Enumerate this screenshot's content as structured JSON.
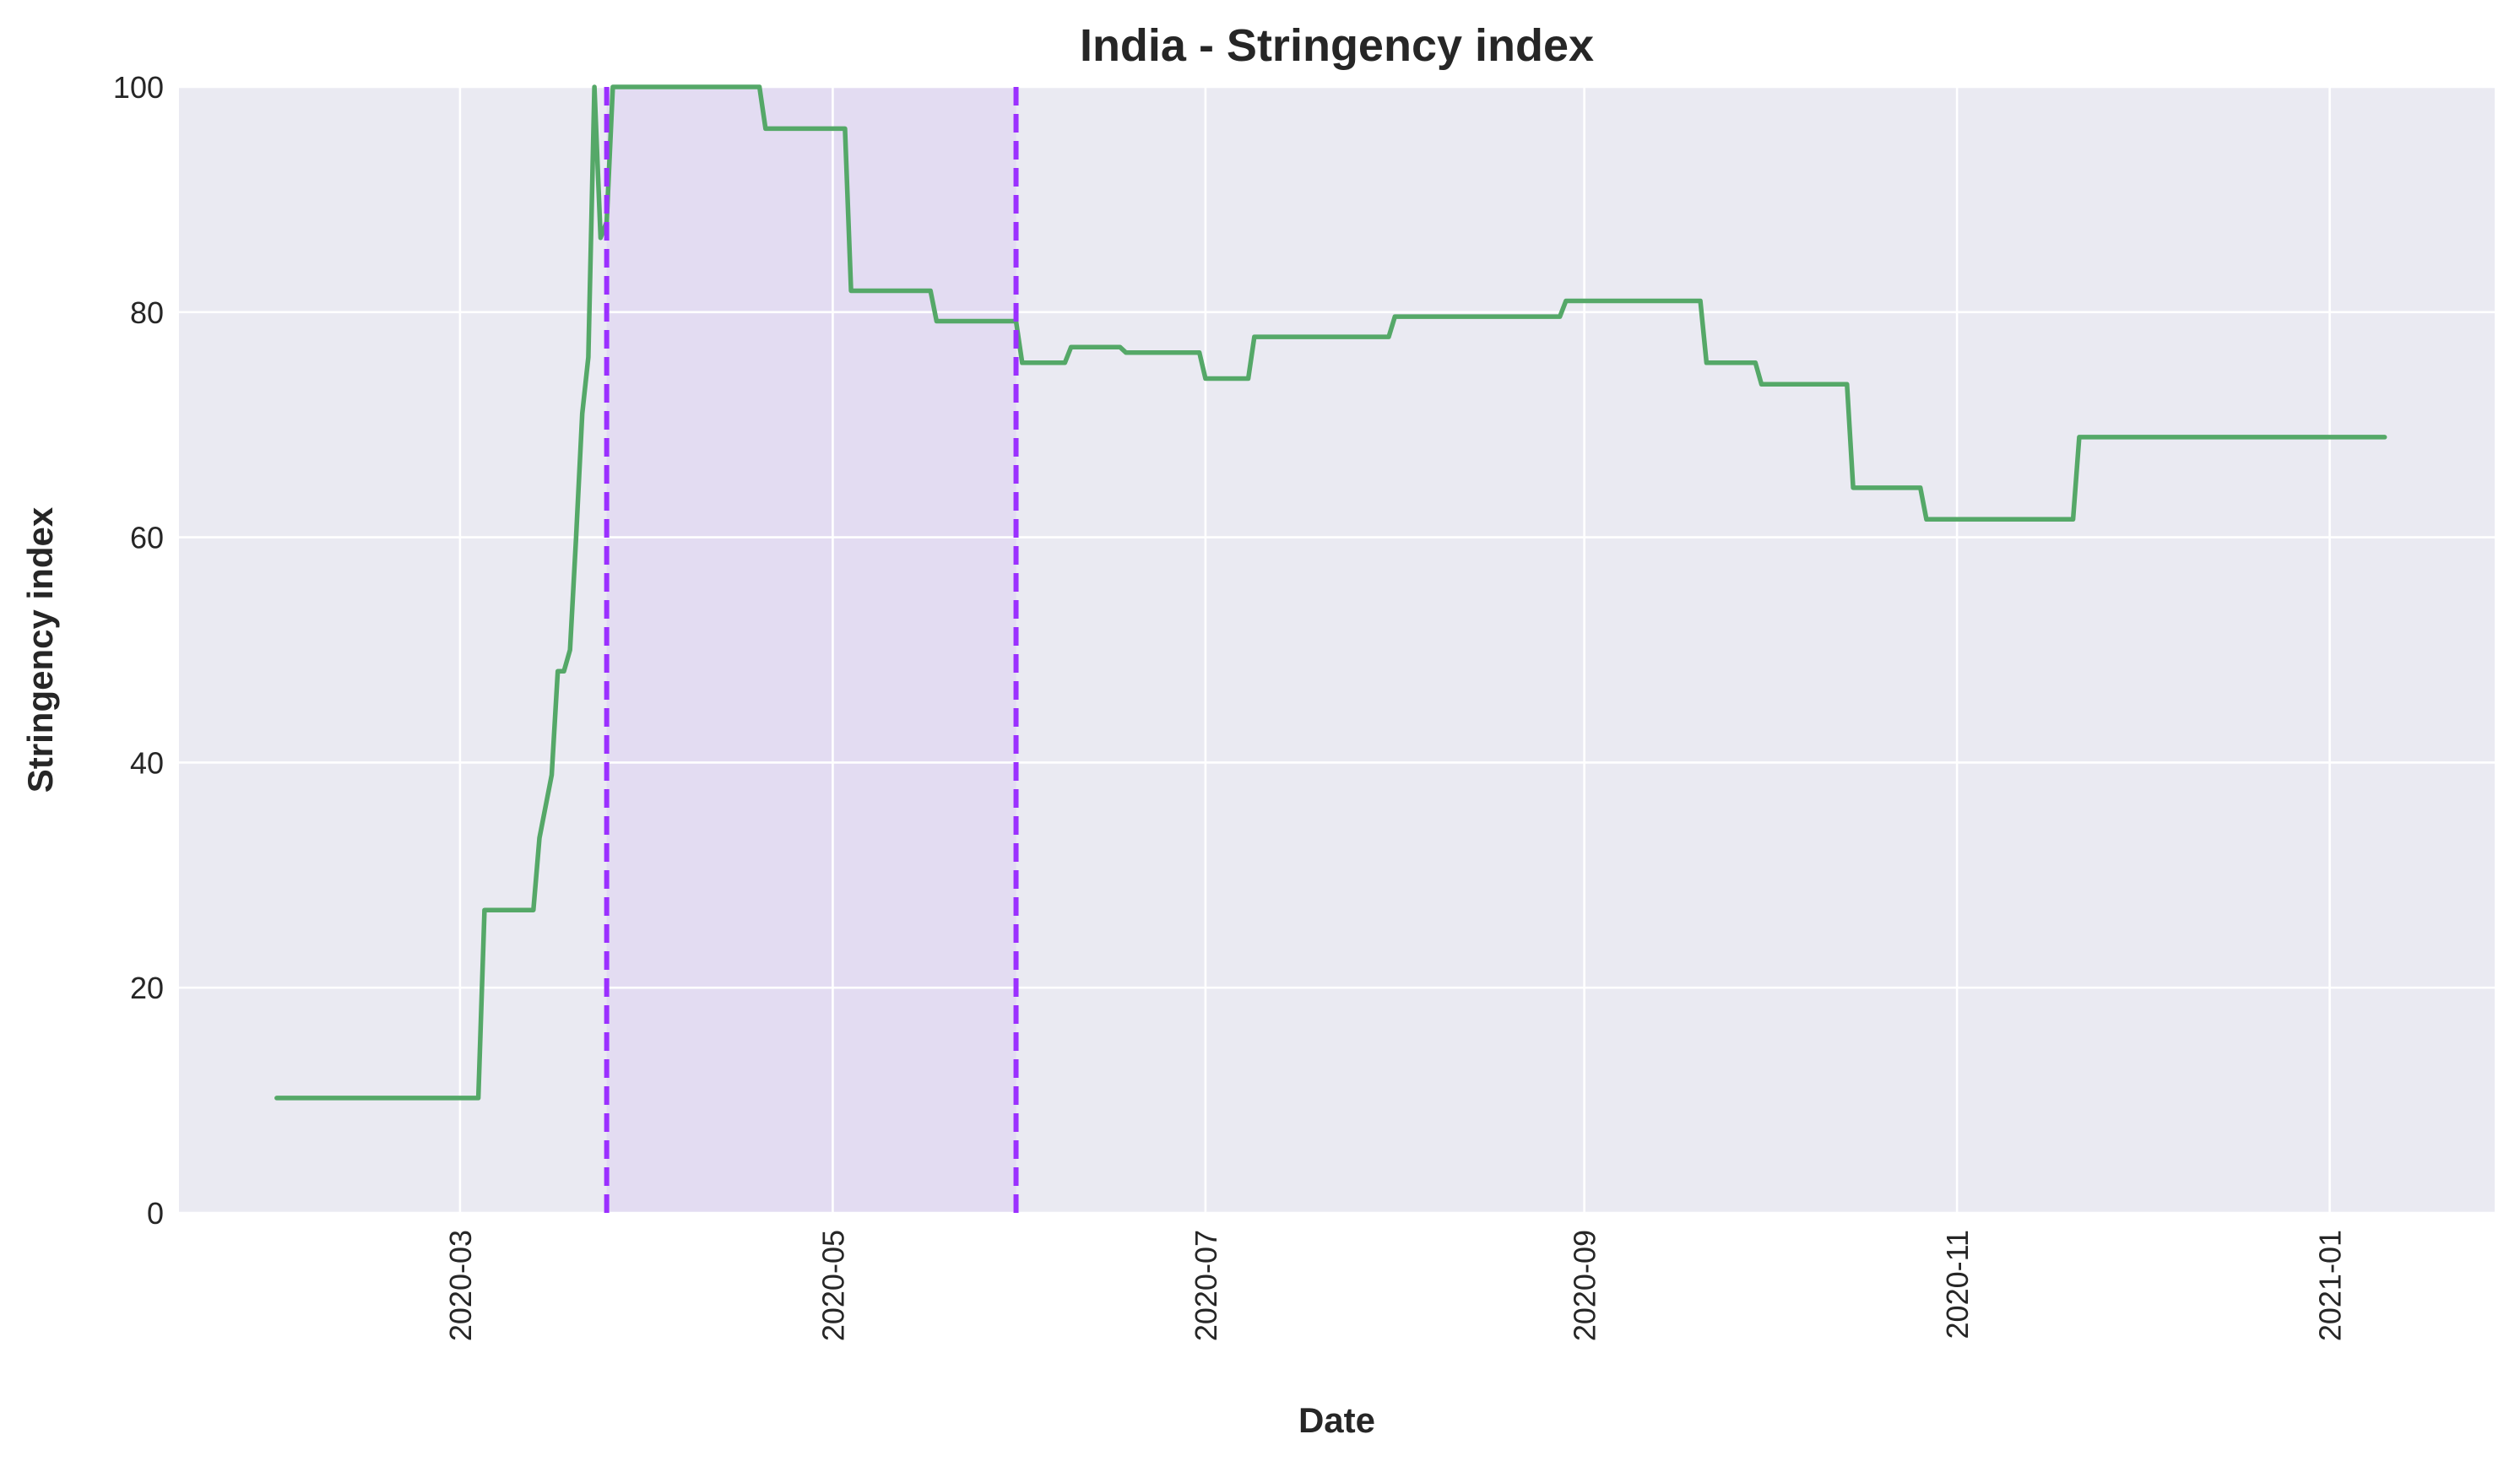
{
  "chart_data": {
    "type": "line",
    "title": "India - Stringency index",
    "xlabel": "Date",
    "ylabel": "Stringency index",
    "xlim": [
      "2020-01-15",
      "2021-01-28"
    ],
    "ylim": [
      0,
      100
    ],
    "x_ticks": [
      "2020-03",
      "2020-05",
      "2020-07",
      "2020-09",
      "2020-11",
      "2021-01"
    ],
    "y_ticks": [
      0,
      20,
      40,
      60,
      80,
      100
    ],
    "grid": true,
    "legend": "none",
    "colors": {
      "background": "#EAEAF2",
      "grid": "#FFFFFF",
      "line": "#55A868",
      "marker_line": "#9B30FF",
      "shade": "#E3DCF2"
    },
    "shaded_region": {
      "start": "2020-03-25",
      "end": "2020-05-31"
    },
    "vertical_lines": [
      "2020-03-25",
      "2020-05-31"
    ],
    "series": [
      {
        "points": [
          [
            "2020-01-31",
            10.2
          ],
          [
            "2020-03-04",
            10.2
          ],
          [
            "2020-03-05",
            26.9
          ],
          [
            "2020-03-13",
            26.9
          ],
          [
            "2020-03-14",
            33.3
          ],
          [
            "2020-03-16",
            38.9
          ],
          [
            "2020-03-17",
            48.1
          ],
          [
            "2020-03-18",
            48.1
          ],
          [
            "2020-03-19",
            50.0
          ],
          [
            "2020-03-20",
            60.0
          ],
          [
            "2020-03-21",
            71.0
          ],
          [
            "2020-03-22",
            76.0
          ],
          [
            "2020-03-23",
            100.0
          ],
          [
            "2020-03-24",
            86.6
          ],
          [
            "2020-03-25",
            88.0
          ],
          [
            "2020-03-26",
            100.0
          ],
          [
            "2020-04-19",
            100.0
          ],
          [
            "2020-04-20",
            96.3
          ],
          [
            "2020-05-03",
            96.3
          ],
          [
            "2020-05-04",
            81.9
          ],
          [
            "2020-05-17",
            81.9
          ],
          [
            "2020-05-18",
            79.2
          ],
          [
            "2020-05-31",
            79.2
          ],
          [
            "2020-06-01",
            75.5
          ],
          [
            "2020-06-08",
            75.5
          ],
          [
            "2020-06-09",
            76.9
          ],
          [
            "2020-06-17",
            76.9
          ],
          [
            "2020-06-18",
            76.4
          ],
          [
            "2020-06-30",
            76.4
          ],
          [
            "2020-07-01",
            74.1
          ],
          [
            "2020-07-08",
            74.1
          ],
          [
            "2020-07-09",
            77.8
          ],
          [
            "2020-07-31",
            77.8
          ],
          [
            "2020-08-01",
            79.6
          ],
          [
            "2020-08-28",
            79.6
          ],
          [
            "2020-08-29",
            81.0
          ],
          [
            "2020-09-20",
            81.0
          ],
          [
            "2020-09-21",
            75.5
          ],
          [
            "2020-09-29",
            75.5
          ],
          [
            "2020-09-30",
            73.6
          ],
          [
            "2020-10-14",
            73.6
          ],
          [
            "2020-10-15",
            64.4
          ],
          [
            "2020-10-26",
            64.4
          ],
          [
            "2020-10-27",
            61.6
          ],
          [
            "2020-11-20",
            61.6
          ],
          [
            "2020-11-21",
            68.9
          ],
          [
            "2021-01-10",
            68.9
          ]
        ]
      }
    ]
  }
}
